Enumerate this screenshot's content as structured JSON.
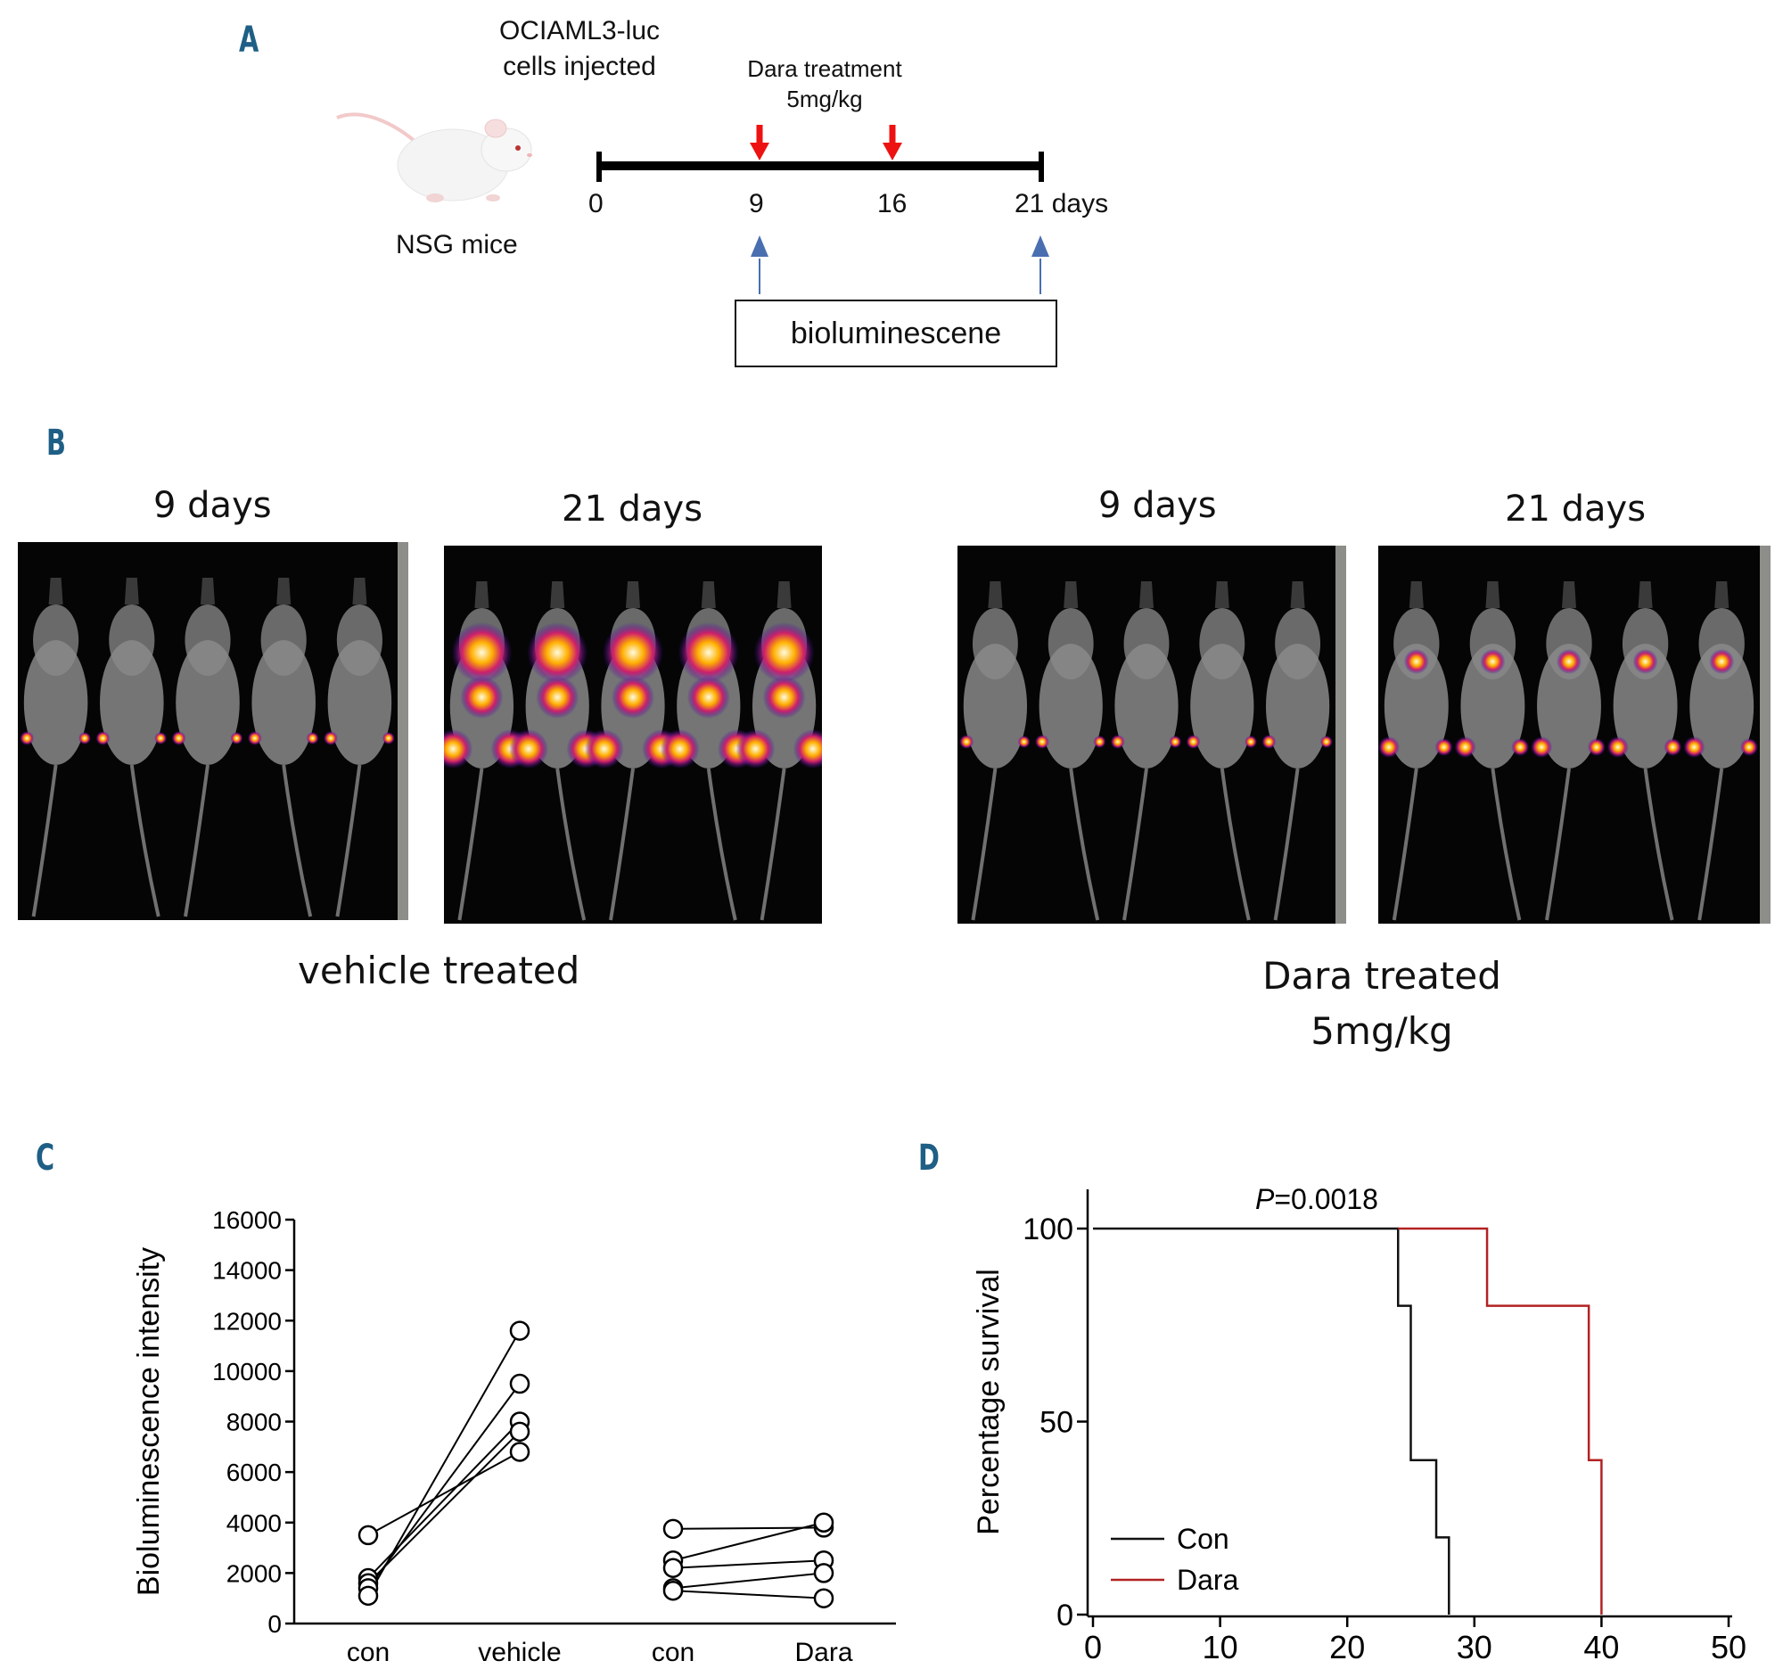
{
  "panel_a": {
    "letter": "A",
    "cells_injected": [
      "OCIAML3-luc",
      "cells injected"
    ],
    "mouse_label": "NSG mice",
    "treatment_label": [
      "Dara treatment",
      "5mg/kg"
    ],
    "ticks": [
      "0",
      "9",
      "16",
      "21 days"
    ],
    "box_label": "bioluminescene"
  },
  "panel_b": {
    "letter": "B",
    "images": [
      {
        "label": "9 days",
        "intensity": "low"
      },
      {
        "label": "21 days",
        "intensity": "high"
      },
      {
        "label": "9 days",
        "intensity": "low"
      },
      {
        "label": "21 days",
        "intensity": "medium"
      }
    ],
    "group_labels": [
      "vehicle treated",
      "Dara treated",
      "5mg/kg"
    ]
  },
  "panel_c": {
    "letter": "C"
  },
  "panel_d": {
    "letter": "D"
  },
  "chart_data": [
    {
      "type": "scatter",
      "ylabel": "Bioluminescence intensity",
      "ylim": [
        0,
        16000
      ],
      "yticks": [
        "0",
        "2000",
        "4000",
        "6000",
        "8000",
        "10000",
        "12000",
        "14000",
        "16000"
      ],
      "categories": [
        "con",
        "vehicle",
        "con",
        "Dara"
      ],
      "paired_groups": [
        {
          "pairs": [
            [
              3500,
              6800
            ],
            [
              1800,
              8000
            ],
            [
              1600,
              7600
            ],
            [
              1400,
              9500
            ],
            [
              1100,
              11600
            ]
          ]
        },
        {
          "pairs": [
            [
              3750,
              3800
            ],
            [
              2500,
              4000
            ],
            [
              2200,
              2500
            ],
            [
              1400,
              2000
            ],
            [
              1300,
              1000
            ]
          ]
        }
      ],
      "grid": false
    },
    {
      "type": "line",
      "ylabel": "Percentage survival",
      "xlim": [
        0,
        50
      ],
      "ylim": [
        0,
        100
      ],
      "xticks": [
        "0",
        "10",
        "20",
        "30",
        "40",
        "50"
      ],
      "yticks": [
        "0",
        "50",
        "100"
      ],
      "annotation": {
        "p_italic": "P",
        "p_rest": "=0.0018"
      },
      "legend_position": "bottom-left",
      "colors": {
        "Con": "#111111",
        "Dara": "#b22222"
      },
      "series": [
        {
          "name": "Con",
          "steps": [
            [
              0,
              100
            ],
            [
              24,
              100
            ],
            [
              24,
              80
            ],
            [
              25,
              80
            ],
            [
              25,
              40
            ],
            [
              27,
              40
            ],
            [
              27,
              20
            ],
            [
              28,
              20
            ],
            [
              28,
              0
            ]
          ]
        },
        {
          "name": "Dara",
          "steps": [
            [
              24,
              100
            ],
            [
              31,
              100
            ],
            [
              31,
              80
            ],
            [
              39,
              80
            ],
            [
              39,
              40
            ],
            [
              40,
              40
            ],
            [
              40,
              0
            ]
          ]
        }
      ],
      "grid": false
    }
  ]
}
